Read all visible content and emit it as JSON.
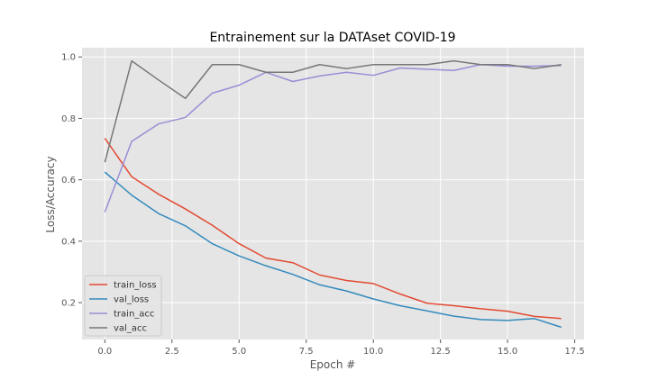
{
  "chart_data": {
    "type": "line",
    "title": "Entrainement sur la DATAset COVID-19",
    "xlabel": "Epoch #",
    "ylabel": "Loss/Accuracy",
    "xlim": [
      -0.85,
      17.85
    ],
    "ylim": [
      0.08,
      1.03
    ],
    "xticks": [
      0.0,
      2.5,
      5.0,
      7.5,
      10.0,
      12.5,
      15.0,
      17.5
    ],
    "xtick_labels": [
      "0.0",
      "2.5",
      "5.0",
      "7.5",
      "10.0",
      "12.5",
      "15.0",
      "17.5"
    ],
    "yticks": [
      0.2,
      0.4,
      0.6,
      0.8,
      1.0
    ],
    "ytick_labels": [
      "0.2",
      "0.4",
      "0.6",
      "0.8",
      "1.0"
    ],
    "grid": true,
    "style": "ggplot",
    "legend_position": "lower-left",
    "x": [
      0,
      1,
      2,
      3,
      4,
      5,
      6,
      7,
      8,
      9,
      10,
      11,
      12,
      13,
      14,
      15,
      16,
      17
    ],
    "series": [
      {
        "name": "train_loss",
        "color": "#E24A33",
        "values": [
          0.735,
          0.61,
          0.553,
          0.505,
          0.452,
          0.392,
          0.345,
          0.33,
          0.29,
          0.272,
          0.262,
          0.228,
          0.198,
          0.19,
          0.18,
          0.172,
          0.155,
          0.148
        ]
      },
      {
        "name": "val_loss",
        "color": "#348ABD",
        "values": [
          0.625,
          0.55,
          0.49,
          0.45,
          0.392,
          0.352,
          0.32,
          0.292,
          0.258,
          0.238,
          0.212,
          0.19,
          0.173,
          0.156,
          0.145,
          0.142,
          0.148,
          0.12
        ]
      },
      {
        "name": "train_acc",
        "color": "#988ED5",
        "values": [
          0.495,
          0.725,
          0.782,
          0.803,
          0.882,
          0.908,
          0.95,
          0.92,
          0.938,
          0.95,
          0.94,
          0.964,
          0.96,
          0.956,
          0.975,
          0.97,
          0.97,
          0.972
        ]
      },
      {
        "name": "val_acc",
        "color": "#777777",
        "values": [
          0.657,
          0.987,
          0.925,
          0.865,
          0.975,
          0.975,
          0.95,
          0.95,
          0.975,
          0.962,
          0.975,
          0.975,
          0.975,
          0.987,
          0.975,
          0.975,
          0.962,
          0.975
        ]
      }
    ]
  }
}
